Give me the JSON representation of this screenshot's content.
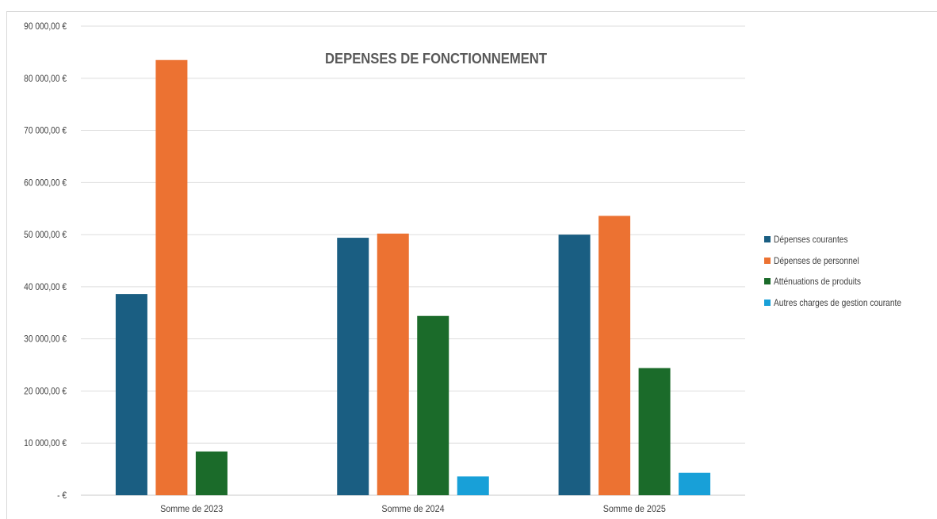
{
  "chart_data": {
    "type": "bar",
    "title": "DEPENSES DE FONCTIONNEMENT",
    "categories": [
      "Somme de 2023",
      "Somme de 2024",
      "Somme de 2025"
    ],
    "series": [
      {
        "name": "Dépenses courantes",
        "color": "#1a5e82",
        "values": [
          38600,
          49400,
          50000
        ]
      },
      {
        "name": "Dépenses de personnel",
        "color": "#ec7232",
        "values": [
          83500,
          50200,
          53600
        ]
      },
      {
        "name": "Atténuations de produits",
        "color": "#1b6b2a",
        "values": [
          8400,
          34400,
          24400
        ]
      },
      {
        "name": "Autres charges de gestion courante",
        "color": "#18a0d8",
        "values": [
          null,
          3600,
          4300
        ]
      }
    ],
    "y_ticks": [
      {
        "value": 0,
        "label": "-   €"
      },
      {
        "value": 10000,
        "label": "10 000,00 €"
      },
      {
        "value": 20000,
        "label": "20 000,00 €"
      },
      {
        "value": 30000,
        "label": "30 000,00 €"
      },
      {
        "value": 40000,
        "label": "40 000,00 €"
      },
      {
        "value": 50000,
        "label": "50 000,00 €"
      },
      {
        "value": 60000,
        "label": "60 000,00 €"
      },
      {
        "value": 70000,
        "label": "70 000,00 €"
      },
      {
        "value": 80000,
        "label": "80 000,00 €"
      },
      {
        "value": 90000,
        "label": "90 000,00 €"
      }
    ],
    "ylim": [
      0,
      90000
    ],
    "grid": true,
    "legend_position": "right"
  }
}
